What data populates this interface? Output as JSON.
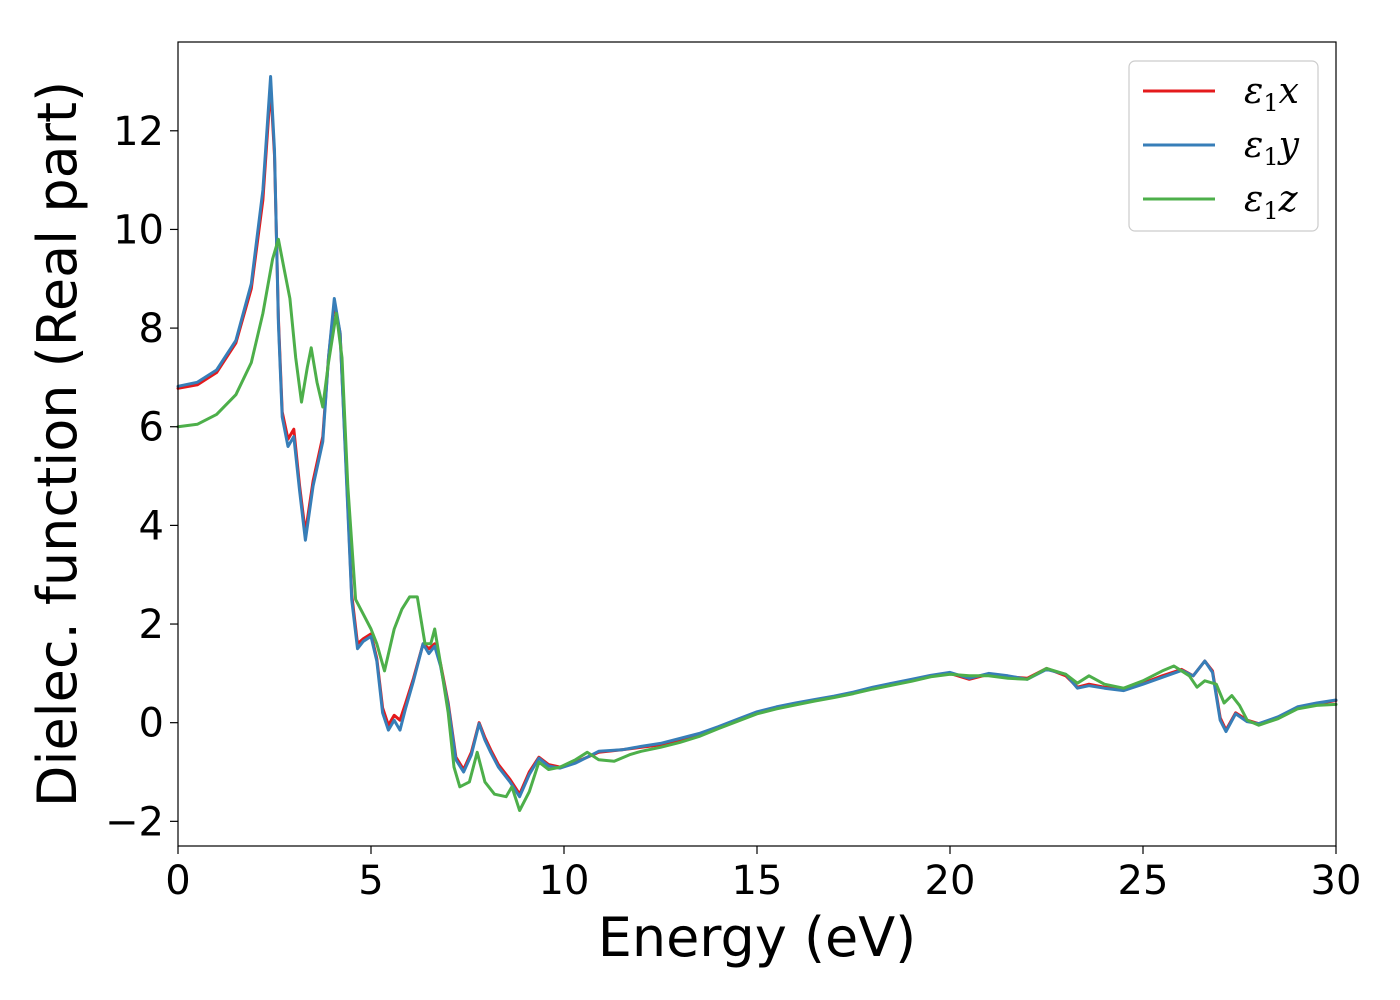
{
  "chart_data": {
    "type": "line",
    "xlabel": "Energy (eV)",
    "ylabel": "Dielec. function (Real part)",
    "xlim": [
      0,
      30
    ],
    "ylim": [
      -2.5,
      13.8
    ],
    "xticks": [
      0,
      5,
      10,
      15,
      20,
      25,
      30
    ],
    "yticks": [
      -2,
      0,
      2,
      4,
      6,
      8,
      10,
      12
    ],
    "ytick_labels": [
      "−2",
      "0",
      "2",
      "4",
      "6",
      "8",
      "10",
      "12"
    ],
    "grid": false,
    "legend_position": "top-right",
    "series": [
      {
        "name": "ε1x",
        "label_base": "ε",
        "label_sub": "1",
        "label_var": "x",
        "color": "#e41a1c",
        "points": [
          [
            0,
            6.78
          ],
          [
            0.5,
            6.85
          ],
          [
            1.0,
            7.1
          ],
          [
            1.5,
            7.7
          ],
          [
            1.9,
            8.8
          ],
          [
            2.2,
            10.6
          ],
          [
            2.4,
            12.9
          ],
          [
            2.5,
            11.5
          ],
          [
            2.6,
            8.2
          ],
          [
            2.7,
            6.3
          ],
          [
            2.85,
            5.75
          ],
          [
            3.0,
            5.95
          ],
          [
            3.15,
            4.8
          ],
          [
            3.3,
            3.85
          ],
          [
            3.5,
            4.9
          ],
          [
            3.75,
            5.8
          ],
          [
            3.9,
            7.4
          ],
          [
            4.05,
            8.5
          ],
          [
            4.2,
            7.9
          ],
          [
            4.35,
            5.3
          ],
          [
            4.5,
            2.6
          ],
          [
            4.65,
            1.6
          ],
          [
            4.8,
            1.7
          ],
          [
            5.0,
            1.8
          ],
          [
            5.15,
            1.3
          ],
          [
            5.3,
            0.3
          ],
          [
            5.45,
            -0.05
          ],
          [
            5.6,
            0.15
          ],
          [
            5.75,
            0.05
          ],
          [
            5.9,
            0.4
          ],
          [
            6.1,
            0.9
          ],
          [
            6.35,
            1.6
          ],
          [
            6.5,
            1.5
          ],
          [
            6.65,
            1.6
          ],
          [
            6.8,
            1.2
          ],
          [
            7.0,
            0.4
          ],
          [
            7.2,
            -0.7
          ],
          [
            7.4,
            -0.95
          ],
          [
            7.6,
            -0.6
          ],
          [
            7.8,
            0.0
          ],
          [
            7.95,
            -0.3
          ],
          [
            8.1,
            -0.55
          ],
          [
            8.3,
            -0.85
          ],
          [
            8.6,
            -1.15
          ],
          [
            8.85,
            -1.45
          ],
          [
            9.1,
            -1.0
          ],
          [
            9.35,
            -0.7
          ],
          [
            9.6,
            -0.85
          ],
          [
            9.9,
            -0.9
          ],
          [
            10.3,
            -0.8
          ],
          [
            10.6,
            -0.7
          ],
          [
            10.9,
            -0.6
          ],
          [
            11.5,
            -0.55
          ],
          [
            12.0,
            -0.5
          ],
          [
            12.5,
            -0.45
          ],
          [
            13.0,
            -0.35
          ],
          [
            13.5,
            -0.25
          ],
          [
            14.0,
            -0.1
          ],
          [
            14.5,
            0.05
          ],
          [
            15.0,
            0.2
          ],
          [
            15.5,
            0.3
          ],
          [
            16.0,
            0.38
          ],
          [
            16.5,
            0.45
          ],
          [
            17.0,
            0.52
          ],
          [
            17.5,
            0.6
          ],
          [
            18.0,
            0.7
          ],
          [
            18.5,
            0.78
          ],
          [
            19.0,
            0.87
          ],
          [
            19.5,
            0.95
          ],
          [
            20.0,
            1.0
          ],
          [
            20.5,
            0.88
          ],
          [
            21.0,
            0.98
          ],
          [
            21.5,
            0.93
          ],
          [
            22.0,
            0.9
          ],
          [
            22.5,
            1.1
          ],
          [
            23.0,
            0.95
          ],
          [
            23.3,
            0.72
          ],
          [
            23.6,
            0.78
          ],
          [
            24.0,
            0.72
          ],
          [
            24.5,
            0.68
          ],
          [
            25.0,
            0.8
          ],
          [
            25.5,
            0.95
          ],
          [
            26.0,
            1.08
          ],
          [
            26.3,
            0.95
          ],
          [
            26.6,
            1.25
          ],
          [
            26.8,
            1.05
          ],
          [
            27.0,
            0.1
          ],
          [
            27.15,
            -0.15
          ],
          [
            27.4,
            0.2
          ],
          [
            27.7,
            0.05
          ],
          [
            28.0,
            -0.02
          ],
          [
            28.5,
            0.1
          ],
          [
            29.0,
            0.3
          ],
          [
            29.5,
            0.38
          ],
          [
            30.0,
            0.45
          ]
        ]
      },
      {
        "name": "ε1y",
        "label_base": "ε",
        "label_sub": "1",
        "label_var": "y",
        "color": "#377eb8",
        "points": [
          [
            0,
            6.82
          ],
          [
            0.5,
            6.9
          ],
          [
            1.0,
            7.15
          ],
          [
            1.5,
            7.75
          ],
          [
            1.9,
            8.9
          ],
          [
            2.2,
            10.8
          ],
          [
            2.4,
            13.1
          ],
          [
            2.5,
            11.6
          ],
          [
            2.6,
            8.1
          ],
          [
            2.7,
            6.2
          ],
          [
            2.85,
            5.6
          ],
          [
            3.0,
            5.8
          ],
          [
            3.15,
            4.7
          ],
          [
            3.3,
            3.7
          ],
          [
            3.5,
            4.8
          ],
          [
            3.75,
            5.7
          ],
          [
            3.9,
            7.4
          ],
          [
            4.05,
            8.6
          ],
          [
            4.2,
            7.9
          ],
          [
            4.35,
            5.2
          ],
          [
            4.5,
            2.5
          ],
          [
            4.65,
            1.5
          ],
          [
            4.8,
            1.65
          ],
          [
            5.0,
            1.75
          ],
          [
            5.15,
            1.25
          ],
          [
            5.3,
            0.2
          ],
          [
            5.45,
            -0.15
          ],
          [
            5.6,
            0.05
          ],
          [
            5.75,
            -0.15
          ],
          [
            5.9,
            0.3
          ],
          [
            6.1,
            0.85
          ],
          [
            6.35,
            1.6
          ],
          [
            6.5,
            1.4
          ],
          [
            6.65,
            1.55
          ],
          [
            6.8,
            1.15
          ],
          [
            7.0,
            0.35
          ],
          [
            7.2,
            -0.75
          ],
          [
            7.4,
            -1.0
          ],
          [
            7.6,
            -0.65
          ],
          [
            7.8,
            -0.02
          ],
          [
            7.95,
            -0.35
          ],
          [
            8.1,
            -0.6
          ],
          [
            8.3,
            -0.9
          ],
          [
            8.6,
            -1.2
          ],
          [
            8.85,
            -1.5
          ],
          [
            9.1,
            -1.05
          ],
          [
            9.35,
            -0.72
          ],
          [
            9.6,
            -0.88
          ],
          [
            9.9,
            -0.92
          ],
          [
            10.3,
            -0.82
          ],
          [
            10.6,
            -0.7
          ],
          [
            10.9,
            -0.58
          ],
          [
            11.5,
            -0.55
          ],
          [
            12.0,
            -0.48
          ],
          [
            12.5,
            -0.42
          ],
          [
            13.0,
            -0.32
          ],
          [
            13.5,
            -0.22
          ],
          [
            14.0,
            -0.08
          ],
          [
            14.5,
            0.07
          ],
          [
            15.0,
            0.22
          ],
          [
            15.5,
            0.32
          ],
          [
            16.0,
            0.4
          ],
          [
            16.5,
            0.47
          ],
          [
            17.0,
            0.54
          ],
          [
            17.5,
            0.62
          ],
          [
            18.0,
            0.72
          ],
          [
            18.5,
            0.8
          ],
          [
            19.0,
            0.88
          ],
          [
            19.5,
            0.96
          ],
          [
            20.0,
            1.02
          ],
          [
            20.5,
            0.9
          ],
          [
            21.0,
            1.0
          ],
          [
            21.5,
            0.95
          ],
          [
            22.0,
            0.88
          ],
          [
            22.5,
            1.08
          ],
          [
            23.0,
            0.98
          ],
          [
            23.3,
            0.7
          ],
          [
            23.6,
            0.75
          ],
          [
            24.0,
            0.7
          ],
          [
            24.5,
            0.65
          ],
          [
            25.0,
            0.78
          ],
          [
            25.5,
            0.92
          ],
          [
            26.0,
            1.06
          ],
          [
            26.3,
            0.95
          ],
          [
            26.6,
            1.25
          ],
          [
            26.8,
            1.02
          ],
          [
            27.0,
            0.05
          ],
          [
            27.15,
            -0.18
          ],
          [
            27.4,
            0.18
          ],
          [
            27.7,
            0.02
          ],
          [
            28.0,
            -0.02
          ],
          [
            28.5,
            0.12
          ],
          [
            29.0,
            0.32
          ],
          [
            29.5,
            0.4
          ],
          [
            30.0,
            0.46
          ]
        ]
      },
      {
        "name": "ε1z",
        "label_base": "ε",
        "label_sub": "1",
        "label_var": "z",
        "color": "#4daf4a",
        "points": [
          [
            0,
            6.0
          ],
          [
            0.5,
            6.05
          ],
          [
            1.0,
            6.25
          ],
          [
            1.5,
            6.65
          ],
          [
            1.9,
            7.3
          ],
          [
            2.2,
            8.3
          ],
          [
            2.45,
            9.4
          ],
          [
            2.6,
            9.8
          ],
          [
            2.75,
            9.2
          ],
          [
            2.9,
            8.6
          ],
          [
            3.05,
            7.4
          ],
          [
            3.2,
            6.5
          ],
          [
            3.35,
            7.2
          ],
          [
            3.45,
            7.6
          ],
          [
            3.6,
            6.9
          ],
          [
            3.75,
            6.4
          ],
          [
            3.9,
            7.3
          ],
          [
            4.1,
            8.3
          ],
          [
            4.25,
            7.4
          ],
          [
            4.4,
            4.8
          ],
          [
            4.6,
            2.5
          ],
          [
            4.8,
            2.2
          ],
          [
            5.0,
            1.9
          ],
          [
            5.15,
            1.6
          ],
          [
            5.35,
            1.05
          ],
          [
            5.6,
            1.9
          ],
          [
            5.8,
            2.3
          ],
          [
            6.0,
            2.55
          ],
          [
            6.2,
            2.55
          ],
          [
            6.4,
            1.6
          ],
          [
            6.55,
            1.6
          ],
          [
            6.65,
            1.9
          ],
          [
            6.8,
            1.2
          ],
          [
            7.0,
            0.2
          ],
          [
            7.15,
            -0.9
          ],
          [
            7.3,
            -1.3
          ],
          [
            7.55,
            -1.2
          ],
          [
            7.75,
            -0.6
          ],
          [
            7.95,
            -1.2
          ],
          [
            8.2,
            -1.45
          ],
          [
            8.5,
            -1.5
          ],
          [
            8.65,
            -1.3
          ],
          [
            8.85,
            -1.78
          ],
          [
            9.1,
            -1.4
          ],
          [
            9.35,
            -0.8
          ],
          [
            9.6,
            -0.95
          ],
          [
            9.9,
            -0.9
          ],
          [
            10.3,
            -0.75
          ],
          [
            10.6,
            -0.6
          ],
          [
            10.9,
            -0.75
          ],
          [
            11.3,
            -0.78
          ],
          [
            11.7,
            -0.65
          ],
          [
            12.0,
            -0.58
          ],
          [
            12.5,
            -0.5
          ],
          [
            13.0,
            -0.4
          ],
          [
            13.5,
            -0.28
          ],
          [
            14.0,
            -0.12
          ],
          [
            14.5,
            0.03
          ],
          [
            15.0,
            0.18
          ],
          [
            15.5,
            0.28
          ],
          [
            16.0,
            0.36
          ],
          [
            16.5,
            0.44
          ],
          [
            17.0,
            0.51
          ],
          [
            17.5,
            0.59
          ],
          [
            18.0,
            0.68
          ],
          [
            18.5,
            0.76
          ],
          [
            19.0,
            0.84
          ],
          [
            19.5,
            0.93
          ],
          [
            20.0,
            0.98
          ],
          [
            20.5,
            0.95
          ],
          [
            21.0,
            0.95
          ],
          [
            21.5,
            0.9
          ],
          [
            22.0,
            0.88
          ],
          [
            22.5,
            1.1
          ],
          [
            23.0,
            0.98
          ],
          [
            23.3,
            0.8
          ],
          [
            23.6,
            0.95
          ],
          [
            24.0,
            0.78
          ],
          [
            24.5,
            0.7
          ],
          [
            25.0,
            0.85
          ],
          [
            25.5,
            1.05
          ],
          [
            25.8,
            1.15
          ],
          [
            26.2,
            0.95
          ],
          [
            26.4,
            0.72
          ],
          [
            26.6,
            0.85
          ],
          [
            26.9,
            0.78
          ],
          [
            27.1,
            0.4
          ],
          [
            27.3,
            0.55
          ],
          [
            27.5,
            0.35
          ],
          [
            27.7,
            0.05
          ],
          [
            28.0,
            -0.05
          ],
          [
            28.5,
            0.08
          ],
          [
            29.0,
            0.28
          ],
          [
            29.5,
            0.35
          ],
          [
            30.0,
            0.37
          ]
        ]
      }
    ]
  }
}
